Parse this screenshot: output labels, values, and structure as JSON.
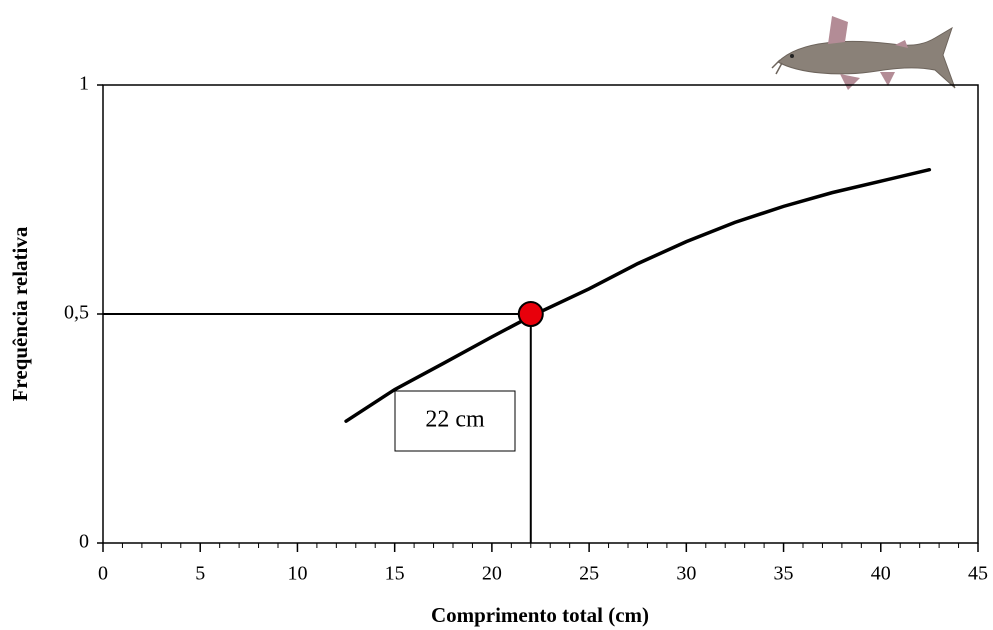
{
  "chart_data": {
    "type": "line",
    "x_label": "Comprimento total (cm)",
    "y_label": "Frequência relativa",
    "x": [
      12.5,
      15,
      17.5,
      20,
      22,
      25,
      27.5,
      30,
      32.5,
      35,
      37.5,
      40,
      42.5
    ],
    "series": [
      {
        "color": "#000000",
        "values": [
          0.266,
          0.335,
          0.392,
          0.45,
          0.495,
          0.555,
          0.61,
          0.658,
          0.7,
          0.735,
          0.765,
          0.79,
          0.815
        ]
      }
    ],
    "highlight": {
      "x": 22,
      "y": 0.5,
      "color": "#e8000b",
      "label": "22 cm"
    },
    "xlim": [
      0,
      45
    ],
    "xticks": [
      0,
      5,
      10,
      15,
      20,
      25,
      30,
      35,
      40,
      45
    ],
    "ylim": [
      0,
      1
    ],
    "yticks": [
      0,
      {
        "value": 0.5,
        "label": "0,5"
      },
      1
    ],
    "grid": false
  }
}
